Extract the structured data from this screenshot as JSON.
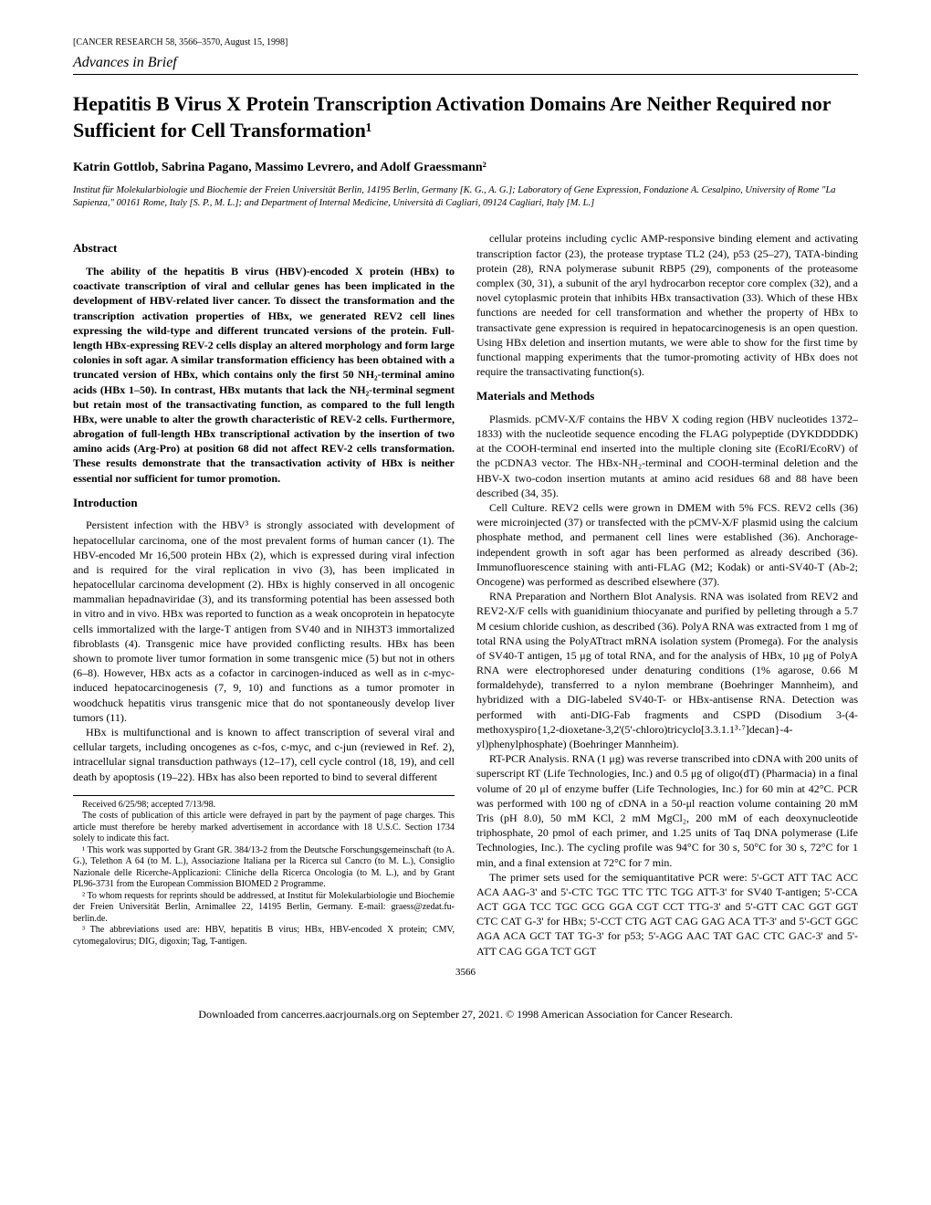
{
  "header_ref": "[CANCER RESEARCH 58, 3566–3570, August 15, 1998]",
  "section_label": "Advances in Brief",
  "title": "Hepatitis B Virus X Protein Transcription Activation Domains Are Neither Required nor Sufficient for Cell Transformation¹",
  "authors": "Katrin Gottlob, Sabrina Pagano, Massimo Levrero, and Adolf Graessmann²",
  "affiliations": "Institut für Molekularbiologie und Biochemie der Freien Universität Berlin, 14195 Berlin, Germany [K. G., A. G.]; Laboratory of Gene Expression, Fondazione A. Cesalpino, University of Rome \"La Sapienza,\" 00161 Rome, Italy [S. P., M. L.]; and Department of Internal Medicine, Università di Cagliari, 09124 Cagliari, Italy [M. L.]",
  "abstract_heading": "Abstract",
  "abstract_body": "The ability of the hepatitis B virus (HBV)-encoded X protein (HBx) to coactivate transcription of viral and cellular genes has been implicated in the development of HBV-related liver cancer. To dissect the transformation and the transcription activation properties of HBx, we generated REV2 cell lines expressing the wild-type and different truncated versions of the protein. Full-length HBx-expressing REV-2 cells display an altered morphology and form large colonies in soft agar. A similar transformation efficiency has been obtained with a truncated version of HBx, which contains only the first 50 NH₂-terminal amino acids (HBx 1–50). In contrast, HBx mutants that lack the NH₂-terminal segment but retain most of the transactivating function, as compared to the full length HBx, were unable to alter the growth characteristic of REV-2 cells. Furthermore, abrogation of full-length HBx transcriptional activation by the insertion of two amino acids (Arg-Pro) at position 68 did not affect REV-2 cells transformation. These results demonstrate that the transactivation activity of HBx is neither essential nor sufficient for tumor promotion.",
  "intro_heading": "Introduction",
  "intro_p1": "Persistent infection with the HBV³ is strongly associated with development of hepatocellular carcinoma, one of the most prevalent forms of human cancer (1). The HBV-encoded Mr 16,500 protein HBx (2), which is expressed during viral infection and is required for the viral replication in vivo (3), has been implicated in hepatocellular carcinoma development (2). HBx is highly conserved in all oncogenic mammalian hepadnaviridae (3), and its transforming potential has been assessed both in vitro and in vivo. HBx was reported to function as a weak oncoprotein in hepatocyte cells immortalized with the large-T antigen from SV40 and in NIH3T3 immortalized fibroblasts (4). Transgenic mice have provided conflicting results. HBx has been shown to promote liver tumor formation in some transgenic mice (5) but not in others (6–8). However, HBx acts as a cofactor in carcinogen-induced as well as in c-myc-induced hepatocarcinogenesis (7, 9, 10) and functions as a tumor promoter in woodchuck hepatitis virus transgenic mice that do not spontaneously develop liver tumors (11).",
  "intro_p2": "HBx is multifunctional and is known to affect transcription of several viral and cellular targets, including oncogenes as c-fos, c-myc, and c-jun (reviewed in Ref. 2), intracellular signal transduction pathways (12–17), cell cycle control (18, 19), and cell death by apoptosis (19–22). HBx has also been reported to bind to several different",
  "col2_p1": "cellular proteins including cyclic AMP-responsive binding element and activating transcription factor (23), the protease tryptase TL2 (24), p53 (25–27), TATA-binding protein (28), RNA polymerase subunit RBP5 (29), components of the proteasome complex (30, 31), a subunit of the aryl hydrocarbon receptor core complex (32), and a novel cytoplasmic protein that inhibits HBx transactivation (33). Which of these HBx functions are needed for cell transformation and whether the property of HBx to transactivate gene expression is required in hepatocarcinogenesis is an open question. Using HBx deletion and insertion mutants, we were able to show for the first time by functional mapping experiments that the tumor-promoting activity of HBx does not require the transactivating function(s).",
  "mm_heading": "Materials and Methods",
  "mm_plasmids": "Plasmids. pCMV-X/F contains the HBV X coding region (HBV nucleotides 1372–1833) with the nucleotide sequence encoding the FLAG polypeptide (DYKDDDDK) at the COOH-terminal end inserted into the multiple cloning site (EcoRI/EcoRV) of the pCDNA3 vector. The HBx-NH₂-terminal and COOH-terminal deletion and the HBV-X two-codon insertion mutants at amino acid residues 68 and 88 have been described (34, 35).",
  "mm_cell": "Cell Culture. REV2 cells were grown in DMEM with 5% FCS. REV2 cells (36) were microinjected (37) or transfected with the pCMV-X/F plasmid using the calcium phosphate method, and permanent cell lines were established (36). Anchorage-independent growth in soft agar has been performed as already described (36). Immunofluorescence staining with anti-FLAG (M2; Kodak) or anti-SV40-T (Ab-2; Oncogene) was performed as described elsewhere (37).",
  "mm_rna": "RNA Preparation and Northern Blot Analysis. RNA was isolated from REV2 and REV2-X/F cells with guanidinium thiocyanate and purified by pelleting through a 5.7 M cesium chloride cushion, as described (36). PolyA RNA was extracted from 1 mg of total RNA using the PolyATtract mRNA isolation system (Promega). For the analysis of SV40-T antigen, 15 μg of total RNA, and for the analysis of HBx, 10 μg of PolyA RNA were electrophoresed under denaturing conditions (1% agarose, 0.66 M formaldehyde), transferred to a nylon membrane (Boehringer Mannheim), and hybridized with a DIG-labeled SV40-T- or HBx-antisense RNA. Detection was performed with anti-DIG-Fab fragments and CSPD (Disodium 3-(4-methoxyspiro{1,2-dioxetane-3,2'(5'-chloro)tricyclo[3.3.1.1³·⁷]decan}-4-yl)phenylphosphate) (Boehringer Mannheim).",
  "mm_rtpcr": "RT-PCR Analysis. RNA (1 μg) was reverse transcribed into cDNA with 200 units of superscript RT (Life Technologies, Inc.) and 0.5 μg of oligo(dT) (Pharmacia) in a final volume of 20 μl of enzyme buffer (Life Technologies, Inc.) for 60 min at 42°C. PCR was performed with 100 ng of cDNA in a 50-μl reaction volume containing 20 mM Tris (pH 8.0), 50 mM KCl, 2 mM MgCl₂, 200 mM of each deoxynucleotide triphosphate, 20 pmol of each primer, and 1.25 units of Taq DNA polymerase (Life Technologies, Inc.). The cycling profile was 94°C for 30 s, 50°C for 30 s, 72°C for 1 min, and a final extension at 72°C for 7 min.",
  "mm_primers": "The primer sets used for the semiquantitative PCR were: 5'-GCT ATT TAC ACC ACA AAG-3' and 5'-CTC TGC TTC TTC TGG ATT-3' for SV40 T-antigen; 5'-CCA ACT GGA TCC TGC GCG GGA CGT CCT TTG-3' and 5'-GTT CAC GGT GGT CTC CAT G-3' for HBx; 5'-CCT CTG AGT CAG GAG ACA TT-3' and 5'-GCT GGC AGA ACA GCT TAT TG-3' for p53; 5'-AGG AAC TAT GAC CTC GAC-3' and 5'-ATT CAG GGA TCT GGT",
  "fn_received": "Received 6/25/98; accepted 7/13/98.",
  "fn_costs": "The costs of publication of this article were defrayed in part by the payment of page charges. This article must therefore be hereby marked advertisement in accordance with 18 U.S.C. Section 1734 solely to indicate this fact.",
  "fn_1": "¹ This work was supported by Grant GR. 384/13-2 from the Deutsche Forschungsgemeinschaft (to A. G.), Telethon A 64 (to M. L.), Associazione Italiana per la Ricerca sul Cancro (to M. L.), Consiglio Nazionale delle Ricerche-Applicazioni: Cliniche della Ricerca Oncologia (to M. L.), and by Grant PL96-3731 from the European Commission BIOMED 2 Programme.",
  "fn_2": "² To whom requests for reprints should be addressed, at Institut für Molekularbiologie und Biochemie der Freien Universität Berlin, Arnimallee 22, 14195 Berlin, Germany. E-mail: graess@zedat.fu-berlin.de.",
  "fn_3": "³ The abbreviations used are: HBV, hepatitis B virus; HBx, HBV-encoded X protein; CMV, cytomegalovirus; DIG, digoxin; Tag, T-antigen.",
  "page_num": "3566",
  "download_note": "Downloaded from cancerres.aacrjournals.org on September 27, 2021. © 1998 American Association for Cancer Research."
}
